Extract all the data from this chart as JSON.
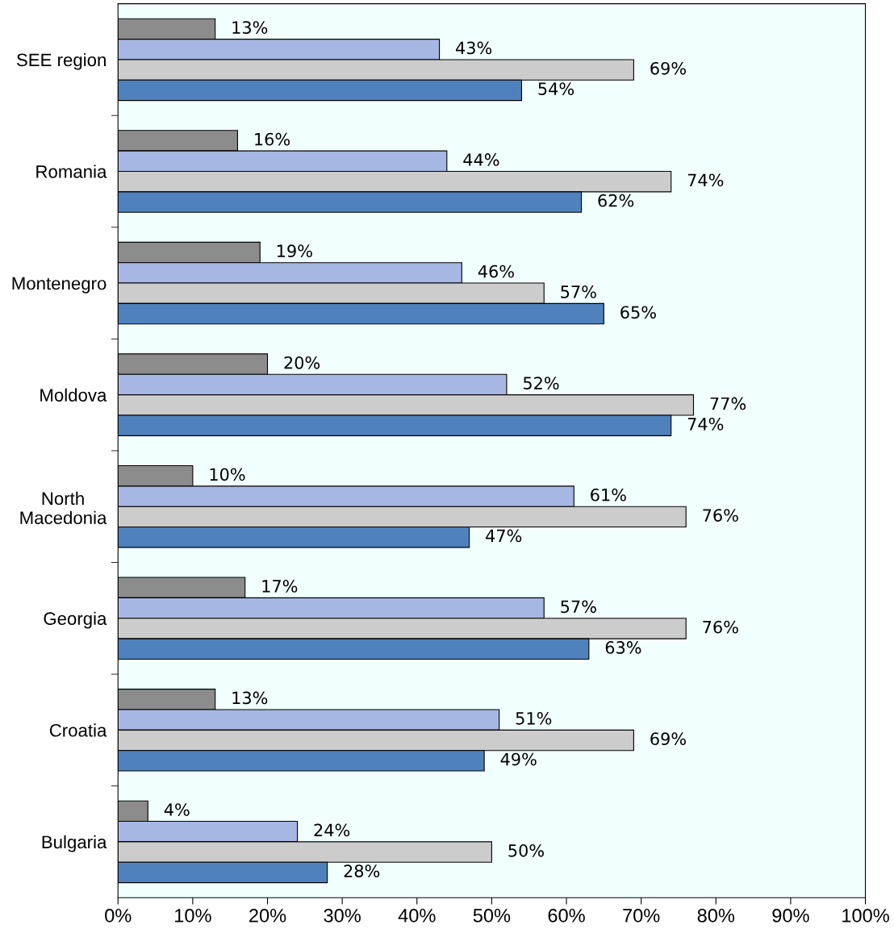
{
  "chart_data": {
    "type": "bar",
    "orientation": "horizontal",
    "categories": [
      "SEE region",
      "Romania",
      "Montenegro",
      "Moldova",
      "North\nMacedonia",
      "Georgia",
      "Croatia",
      "Bulgaria"
    ],
    "series": [
      {
        "color": "#8c8c8c",
        "values": [
          13,
          16,
          19,
          20,
          10,
          17,
          13,
          4
        ],
        "value_labels": [
          "13%",
          "16%",
          "19%",
          "20%",
          "10%",
          "17%",
          "13%",
          "4%"
        ]
      },
      {
        "color": "#a7b7e3",
        "values": [
          43,
          44,
          46,
          52,
          61,
          57,
          51,
          24
        ],
        "value_labels": [
          "43%",
          "44%",
          "46%",
          "52%",
          "61%",
          "57%",
          "51%",
          "24%"
        ]
      },
      {
        "color": "#cccccc",
        "values": [
          69,
          74,
          57,
          77,
          76,
          76,
          69,
          50
        ],
        "value_labels": [
          "69%",
          "74%",
          "57%",
          "77%",
          "76%",
          "76%",
          "69%",
          "50%"
        ]
      },
      {
        "color": "#4f81bd",
        "values": [
          54,
          62,
          65,
          74,
          47,
          63,
          49,
          28
        ],
        "value_labels": [
          "54%",
          "62%",
          "65%",
          "74%",
          "47%",
          "63%",
          "49%",
          "28%"
        ]
      }
    ],
    "xlim": [
      0,
      100
    ],
    "xticks": [
      {
        "value": 0,
        "label": "0%"
      },
      {
        "value": 10,
        "label": "10%"
      },
      {
        "value": 20,
        "label": "20%"
      },
      {
        "value": 30,
        "label": "30%"
      },
      {
        "value": 40,
        "label": "40%"
      },
      {
        "value": 50,
        "label": "50%"
      },
      {
        "value": 60,
        "label": "60%"
      },
      {
        "value": 70,
        "label": "70%"
      },
      {
        "value": 80,
        "label": "80%"
      },
      {
        "value": 90,
        "label": "90%"
      },
      {
        "value": 100,
        "label": "100%"
      }
    ],
    "grid": false,
    "legend": false
  }
}
